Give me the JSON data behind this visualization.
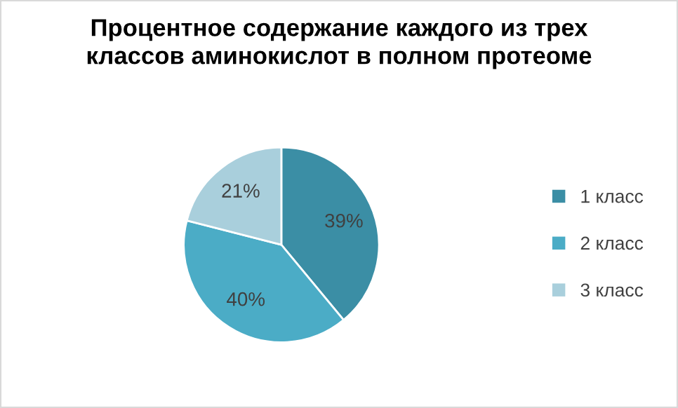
{
  "chart_data": {
    "type": "pie",
    "title": "Процентное содержание каждого из трех\nклассов аминокислот в полном протеоме",
    "categories": [
      "1 класс",
      "2 класс",
      "3 класс"
    ],
    "values": [
      39,
      40,
      21
    ],
    "colors": [
      "#3b8ea5",
      "#4bacc6",
      "#a9cfdc"
    ],
    "value_labels": [
      "39%",
      "40%",
      "21%"
    ],
    "legend": "right"
  }
}
